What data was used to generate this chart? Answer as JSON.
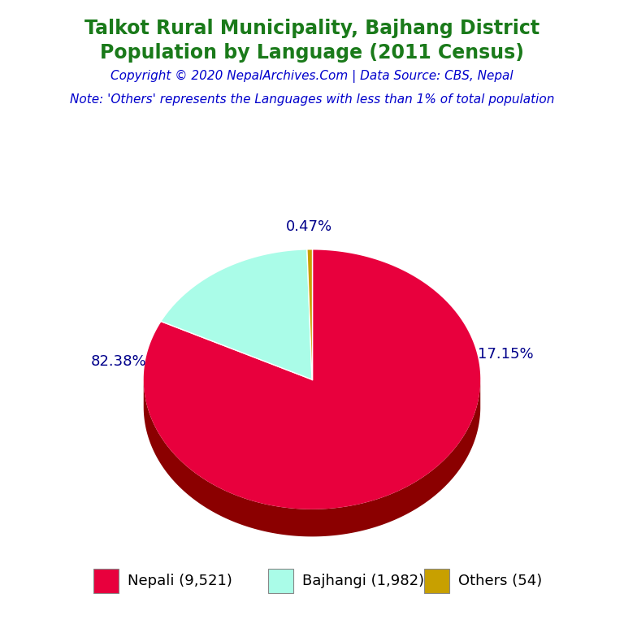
{
  "title_line1": "Talkot Rural Municipality, Bajhang District",
  "title_line2": "Population by Language (2011 Census)",
  "copyright": "Copyright © 2020 NepalArchives.Com | Data Source: CBS, Nepal",
  "note": "Note: 'Others' represents the Languages with less than 1% of total population",
  "labels": [
    "Nepali (9,521)",
    "Bajhangi (1,982)",
    "Others (54)"
  ],
  "values": [
    9521,
    1982,
    54
  ],
  "percentages": [
    "82.38%",
    "17.15%",
    "0.47%"
  ],
  "colors": [
    "#e8003d",
    "#aafce8",
    "#c8a000"
  ],
  "wall_colors": [
    "#8b0000",
    "#3cb88a",
    "#8b6914"
  ],
  "title_color": "#1a7a1a",
  "copyright_color": "#0000cc",
  "note_color": "#0000cc",
  "label_color": "#00008b",
  "background_color": "#ffffff",
  "legend_fontsize": 13,
  "title_fontsize": 17,
  "copyright_fontsize": 11,
  "note_fontsize": 11
}
